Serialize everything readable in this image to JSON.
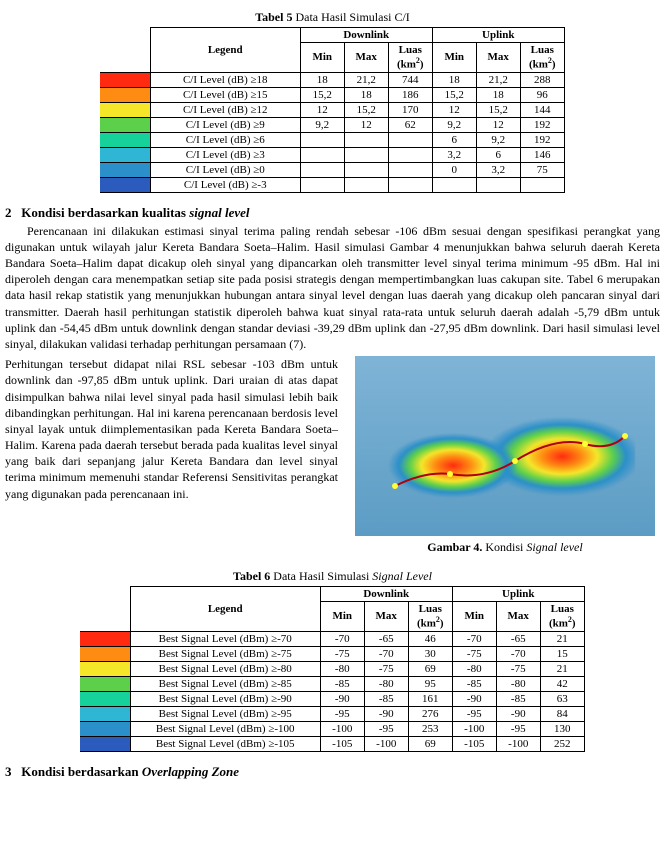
{
  "table5": {
    "caption_bold": "Tabel 5",
    "caption_rest": " Data Hasil Simulasi C/I",
    "headers": {
      "legend": "Legend",
      "downlink": "Downlink",
      "uplink": "Uplink",
      "min": "Min",
      "max": "Max",
      "luas": "Luas (km",
      "luas_sup": "2",
      "luas_close": ")"
    },
    "rows": [
      {
        "color": "#ff2a10",
        "label": "C/I Level (dB) ≥18",
        "d_min": "18",
        "d_max": "21,2",
        "d_luas": "744",
        "u_min": "18",
        "u_max": "21,2",
        "u_luas": "288"
      },
      {
        "color": "#ff8c12",
        "label": "C/I Level (dB) ≥15",
        "d_min": "15,2",
        "d_max": "18",
        "d_luas": "186",
        "u_min": "15,2",
        "u_max": "18",
        "u_luas": "96"
      },
      {
        "color": "#f5e62a",
        "label": "C/I Level (dB) ≥12",
        "d_min": "12",
        "d_max": "15,2",
        "d_luas": "170",
        "u_min": "12",
        "u_max": "15,2",
        "u_luas": "144"
      },
      {
        "color": "#5dd04b",
        "label": "C/I Level (dB) ≥9",
        "d_min": "9,2",
        "d_max": "12",
        "d_luas": "62",
        "u_min": "9,2",
        "u_max": "12",
        "u_luas": "192"
      },
      {
        "color": "#17d19a",
        "label": "C/I Level (dB) ≥6",
        "d_min": "",
        "d_max": "",
        "d_luas": "",
        "u_min": "6",
        "u_max": "9,2",
        "u_luas": "192"
      },
      {
        "color": "#2fb6d4",
        "label": "C/I Level (dB) ≥3",
        "d_min": "",
        "d_max": "",
        "d_luas": "",
        "u_min": "3,2",
        "u_max": "6",
        "u_luas": "146"
      },
      {
        "color": "#2b8fc9",
        "label": "C/I Level (dB) ≥0",
        "d_min": "",
        "d_max": "",
        "d_luas": "",
        "u_min": "0",
        "u_max": "3,2",
        "u_luas": "75"
      },
      {
        "color": "#2b5bbd",
        "label": "C/I Level (dB) ≥-3",
        "d_min": "",
        "d_max": "",
        "d_luas": "",
        "u_min": "",
        "u_max": "",
        "u_luas": ""
      }
    ]
  },
  "section42": {
    "heading_num": "2",
    "heading_text": "Kondisi berdasarkan kualitas ",
    "heading_italic": "signal level"
  },
  "para1": "Perencanaan ini dilakukan estimasi sinyal terima paling rendah sebesar -106 dBm sesuai dengan spesifikasi perangkat yang digunakan untuk wilayah jalur Kereta Bandara Soeta–Halim. Hasil simulasi Gambar 4 menunjukkan bahwa seluruh daerah Kereta Bandara Soeta–Halim dapat dicakup oleh sinyal yang dipancarkan oleh transmitter level sinyal terima minimum -95 dBm. Hal ini diperoleh dengan cara menempatkan setiap site pada posisi strategis dengan mempertimbangkan luas cakupan site. Tabel 6 merupakan data hasil rekap statistik yang menunjukkan hubungan antara sinyal level dengan luas daerah yang dicakup oleh pancaran sinyal dari transmitter. Daerah hasil perhitungan statistik diperoleh bahwa kuat sinyal rata-rata untuk seluruh daerah adalah -5,79 dBm untuk uplink dan -54,45 dBm untuk downlink dengan standar deviasi -39,29 dBm uplink dan -27,95 dBm downlink. Dari hasil simulasi level sinyal, dilakukan validasi terhadap perhitungan persamaan (7).",
  "para2": "Perhitungan tersebut didapat nilai RSL sebesar -103 dBm untuk downlink dan -97,85 dBm untuk uplink. Dari uraian di atas dapat disimpulkan bahwa nilai level sinyal pada hasil simulasi lebih baik dibandingkan perhitungan. Hal ini karena perencanaan berdosis level sinyal layak untuk diimplementasikan pada Kereta Bandara Soeta–Halim. Karena pada daerah tersebut berada pada kualitas level sinyal yang baik dari sepanjang jalur Kereta Bandara dan level sinyal terima minimum memenuhi standar Referensi Sensitivitas perangkat yang digunakan pada perencanaan ini.",
  "figure4": {
    "caption_bold": "Gambar 4.",
    "caption_rest": " Kondisi ",
    "caption_italic": "Signal level"
  },
  "table6": {
    "caption_bold": "Tabel 6",
    "caption_rest": " Data Hasil Simulasi ",
    "caption_italic": "Signal Level",
    "headers": {
      "legend": "Legend",
      "downlink": "Downlink",
      "uplink": "Uplink",
      "min": "Min",
      "max": "Max",
      "luas": "Luas (km",
      "luas_sup": "2",
      "luas_close": ")"
    },
    "rows": [
      {
        "color": "#ff2a10",
        "label": "Best Signal Level (dBm) ≥-70",
        "d_min": "-70",
        "d_max": "-65",
        "d_luas": "46",
        "u_min": "-70",
        "u_max": "-65",
        "u_luas": "21"
      },
      {
        "color": "#ff8c12",
        "label": "Best Signal Level (dBm) ≥-75",
        "d_min": "-75",
        "d_max": "-70",
        "d_luas": "30",
        "u_min": "-75",
        "u_max": "-70",
        "u_luas": "15"
      },
      {
        "color": "#f5e62a",
        "label": "Best Signal Level (dBm) ≥-80",
        "d_min": "-80",
        "d_max": "-75",
        "d_luas": "69",
        "u_min": "-80",
        "u_max": "-75",
        "u_luas": "21"
      },
      {
        "color": "#5dd04b",
        "label": "Best Signal Level (dBm) ≥-85",
        "d_min": "-85",
        "d_max": "-80",
        "d_luas": "95",
        "u_min": "-85",
        "u_max": "-80",
        "u_luas": "42"
      },
      {
        "color": "#17d19a",
        "label": "Best Signal Level (dBm) ≥-90",
        "d_min": "-90",
        "d_max": "-85",
        "d_luas": "161",
        "u_min": "-90",
        "u_max": "-85",
        "u_luas": "63"
      },
      {
        "color": "#2fb6d4",
        "label": "Best Signal Level (dBm) ≥-95",
        "d_min": "-95",
        "d_max": "-90",
        "d_luas": "276",
        "u_min": "-95",
        "u_max": "-90",
        "u_luas": "84"
      },
      {
        "color": "#2b8fc9",
        "label": "Best Signal Level (dBm) ≥-100",
        "d_min": "-100",
        "d_max": "-95",
        "d_luas": "253",
        "u_min": "-100",
        "u_max": "-95",
        "u_luas": "130"
      },
      {
        "color": "#2b5bbd",
        "label": "Best Signal Level (dBm) ≥-105",
        "d_min": "-105",
        "d_max": "-100",
        "d_luas": "69",
        "u_min": "-105",
        "u_max": "-100",
        "u_luas": "252"
      }
    ]
  },
  "section43": {
    "heading_num": "3",
    "heading_text": "Kondisi berdasarkan ",
    "heading_italic": "Overlapping Zone"
  }
}
